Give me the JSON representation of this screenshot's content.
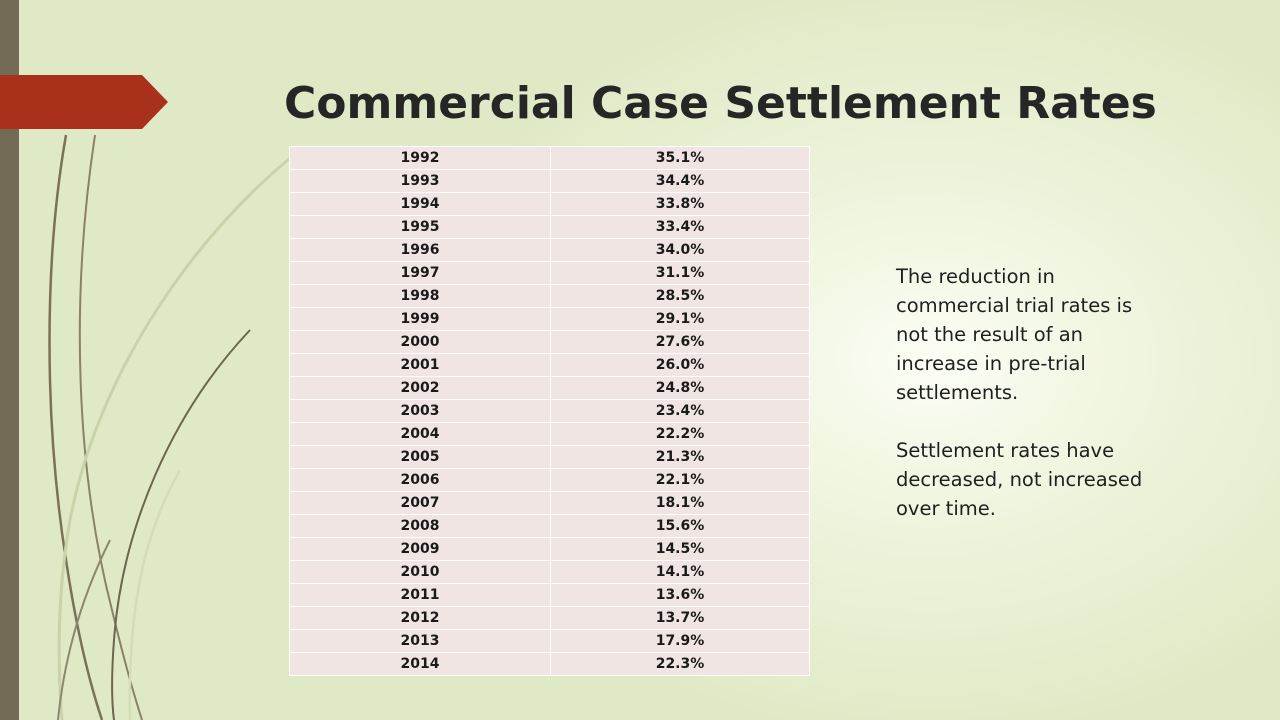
{
  "slide": {
    "title": "Commercial Case Settlement Rates",
    "notes": [
      "The reduction in commercial trial rates is not the result of an increase in pre-trial settlements.",
      "Settlement rates have decreased, not increased over time."
    ],
    "colors": {
      "accent": "#a9301a",
      "sidebar": "#726b55",
      "table_cell": "#f1e5e3",
      "background": "#e0e9c6"
    }
  },
  "chart_data": {
    "type": "table",
    "rows": [
      {
        "year": "1992",
        "rate": "35.1%"
      },
      {
        "year": "1993",
        "rate": "34.4%"
      },
      {
        "year": "1994",
        "rate": "33.8%"
      },
      {
        "year": "1995",
        "rate": "33.4%"
      },
      {
        "year": "1996",
        "rate": "34.0%"
      },
      {
        "year": "1997",
        "rate": "31.1%"
      },
      {
        "year": "1998",
        "rate": "28.5%"
      },
      {
        "year": "1999",
        "rate": "29.1%"
      },
      {
        "year": "2000",
        "rate": "27.6%"
      },
      {
        "year": "2001",
        "rate": "26.0%"
      },
      {
        "year": "2002",
        "rate": "24.8%"
      },
      {
        "year": "2003",
        "rate": "23.4%"
      },
      {
        "year": "2004",
        "rate": "22.2%"
      },
      {
        "year": "2005",
        "rate": "21.3%"
      },
      {
        "year": "2006",
        "rate": "22.1%"
      },
      {
        "year": "2007",
        "rate": "18.1%"
      },
      {
        "year": "2008",
        "rate": "15.6%"
      },
      {
        "year": "2009",
        "rate": "14.5%"
      },
      {
        "year": "2010",
        "rate": "14.1%"
      },
      {
        "year": "2011",
        "rate": "13.6%"
      },
      {
        "year": "2012",
        "rate": "13.7%"
      },
      {
        "year": "2013",
        "rate": "17.9%"
      },
      {
        "year": "2014",
        "rate": "22.3%"
      }
    ]
  }
}
